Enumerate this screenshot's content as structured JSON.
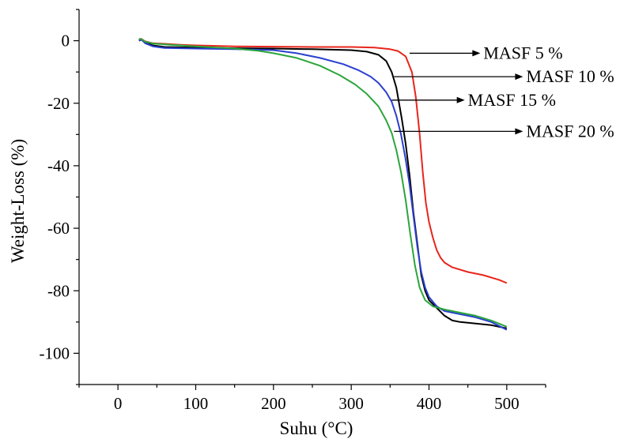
{
  "chart_data": {
    "type": "line",
    "xlabel": "Suhu (°C)",
    "ylabel": "Weight-Loss (%)",
    "xlim": [
      -50,
      550
    ],
    "ylim": [
      -110,
      10
    ],
    "x_ticks": [
      0,
      100,
      200,
      300,
      400,
      500
    ],
    "y_ticks": [
      0,
      -20,
      -40,
      -60,
      -80,
      -100
    ],
    "grid": false,
    "series": [
      {
        "name": "MASF 5 %",
        "color": "#e8251b",
        "points": [
          [
            27,
            0.5
          ],
          [
            30,
            0.6
          ],
          [
            35,
            -0.2
          ],
          [
            45,
            -0.8
          ],
          [
            60,
            -1.0
          ],
          [
            80,
            -1.3
          ],
          [
            100,
            -1.5
          ],
          [
            150,
            -1.8
          ],
          [
            200,
            -1.9
          ],
          [
            250,
            -2.0
          ],
          [
            300,
            -2.0
          ],
          [
            330,
            -2.2
          ],
          [
            350,
            -2.7
          ],
          [
            360,
            -3.3
          ],
          [
            370,
            -5
          ],
          [
            378,
            -10
          ],
          [
            383,
            -18
          ],
          [
            388,
            -30
          ],
          [
            392,
            -42
          ],
          [
            396,
            -52
          ],
          [
            400,
            -58
          ],
          [
            405,
            -63
          ],
          [
            410,
            -67
          ],
          [
            415,
            -69.5
          ],
          [
            420,
            -71
          ],
          [
            430,
            -72.5
          ],
          [
            450,
            -74
          ],
          [
            470,
            -75
          ],
          [
            490,
            -76.5
          ],
          [
            500,
            -77.5
          ]
        ]
      },
      {
        "name": "MASF 10 %",
        "color": "#000000",
        "points": [
          [
            27,
            0
          ],
          [
            30,
            0.3
          ],
          [
            35,
            -0.5
          ],
          [
            45,
            -1.5
          ],
          [
            60,
            -2.0
          ],
          [
            100,
            -2.2
          ],
          [
            150,
            -2.4
          ],
          [
            200,
            -2.5
          ],
          [
            250,
            -2.7
          ],
          [
            300,
            -3.0
          ],
          [
            320,
            -3.5
          ],
          [
            335,
            -4.5
          ],
          [
            345,
            -6.5
          ],
          [
            352,
            -10
          ],
          [
            358,
            -15
          ],
          [
            365,
            -25
          ],
          [
            370,
            -33
          ],
          [
            375,
            -43
          ],
          [
            380,
            -55
          ],
          [
            385,
            -65
          ],
          [
            390,
            -75
          ],
          [
            395,
            -80
          ],
          [
            400,
            -83
          ],
          [
            410,
            -85.5
          ],
          [
            420,
            -88
          ],
          [
            430,
            -89.5
          ],
          [
            440,
            -90
          ],
          [
            460,
            -90.5
          ],
          [
            480,
            -91
          ],
          [
            500,
            -92
          ]
        ]
      },
      {
        "name": "MASF 15 %",
        "color": "#2a3fcf",
        "points": [
          [
            27,
            0
          ],
          [
            30,
            0.4
          ],
          [
            35,
            -0.8
          ],
          [
            45,
            -1.8
          ],
          [
            60,
            -2.3
          ],
          [
            100,
            -2.5
          ],
          [
            150,
            -2.7
          ],
          [
            200,
            -3.0
          ],
          [
            230,
            -4.0
          ],
          [
            260,
            -5.5
          ],
          [
            290,
            -7.5
          ],
          [
            310,
            -9.5
          ],
          [
            325,
            -11.5
          ],
          [
            335,
            -13.5
          ],
          [
            345,
            -16.5
          ],
          [
            352,
            -19.5
          ],
          [
            358,
            -24
          ],
          [
            364,
            -30
          ],
          [
            370,
            -38
          ],
          [
            375,
            -46
          ],
          [
            380,
            -56
          ],
          [
            385,
            -66
          ],
          [
            390,
            -74
          ],
          [
            395,
            -79
          ],
          [
            400,
            -82
          ],
          [
            410,
            -85
          ],
          [
            420,
            -86.5
          ],
          [
            440,
            -87.5
          ],
          [
            460,
            -88.5
          ],
          [
            480,
            -90
          ],
          [
            500,
            -92.5
          ]
        ]
      },
      {
        "name": "MASF 20 %",
        "color": "#2ba53b",
        "points": [
          [
            27,
            0.6
          ],
          [
            30,
            0.5
          ],
          [
            35,
            -0.3
          ],
          [
            45,
            -0.9
          ],
          [
            60,
            -1.2
          ],
          [
            100,
            -1.8
          ],
          [
            150,
            -2.5
          ],
          [
            180,
            -3.2
          ],
          [
            200,
            -4.0
          ],
          [
            230,
            -5.5
          ],
          [
            260,
            -8.0
          ],
          [
            285,
            -11.0
          ],
          [
            305,
            -14.0
          ],
          [
            320,
            -17.0
          ],
          [
            335,
            -21.0
          ],
          [
            345,
            -25.5
          ],
          [
            352,
            -29.5
          ],
          [
            358,
            -35
          ],
          [
            364,
            -42
          ],
          [
            370,
            -51
          ],
          [
            376,
            -62
          ],
          [
            382,
            -72
          ],
          [
            388,
            -79
          ],
          [
            395,
            -83
          ],
          [
            405,
            -85
          ],
          [
            420,
            -86
          ],
          [
            440,
            -87
          ],
          [
            460,
            -88
          ],
          [
            480,
            -89.5
          ],
          [
            500,
            -91.5
          ]
        ]
      }
    ],
    "annotations": [
      {
        "text": "MASF 5 %",
        "from": [
          375,
          -4
        ],
        "text_at": [
          470,
          -4
        ]
      },
      {
        "text": "MASF 10 %",
        "from": [
          355,
          -11.5
        ],
        "text_at": [
          525,
          -11.5
        ]
      },
      {
        "text": "MASF 15 %",
        "from": [
          352,
          -19
        ],
        "text_at": [
          450,
          -19
        ]
      },
      {
        "text": "MASF 20 %",
        "from": [
          355,
          -29
        ],
        "text_at": [
          525,
          -29
        ]
      }
    ]
  }
}
